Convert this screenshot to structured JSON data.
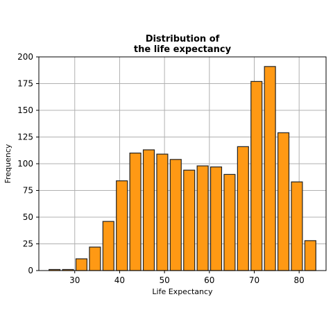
{
  "chart_data": {
    "type": "bar",
    "title_lines": [
      "Distribution of",
      "the life expectancy"
    ],
    "xlabel": "Life Expectancy",
    "ylabel": "Frequency",
    "bin_centers": [
      25.5,
      28.5,
      31.5,
      34.5,
      37.5,
      40.5,
      43.5,
      46.5,
      49.5,
      52.5,
      55.5,
      58.5,
      61.5,
      64.5,
      67.5,
      70.5,
      73.5,
      76.5,
      79.5,
      82.5
    ],
    "bin_width": 3.0,
    "values": [
      1,
      1,
      11,
      22,
      46,
      84,
      110,
      113,
      109,
      104,
      94,
      98,
      97,
      90,
      116,
      177,
      191,
      129,
      83,
      28
    ],
    "xlim": [
      22.0,
      86.0
    ],
    "ylim": [
      0,
      200
    ],
    "xticks": [
      30,
      40,
      50,
      60,
      70,
      80
    ],
    "yticks": [
      0,
      25,
      50,
      75,
      100,
      125,
      150,
      175,
      200
    ],
    "grid": true,
    "bar_color": "#ff9914",
    "edge_color": "#222222"
  }
}
